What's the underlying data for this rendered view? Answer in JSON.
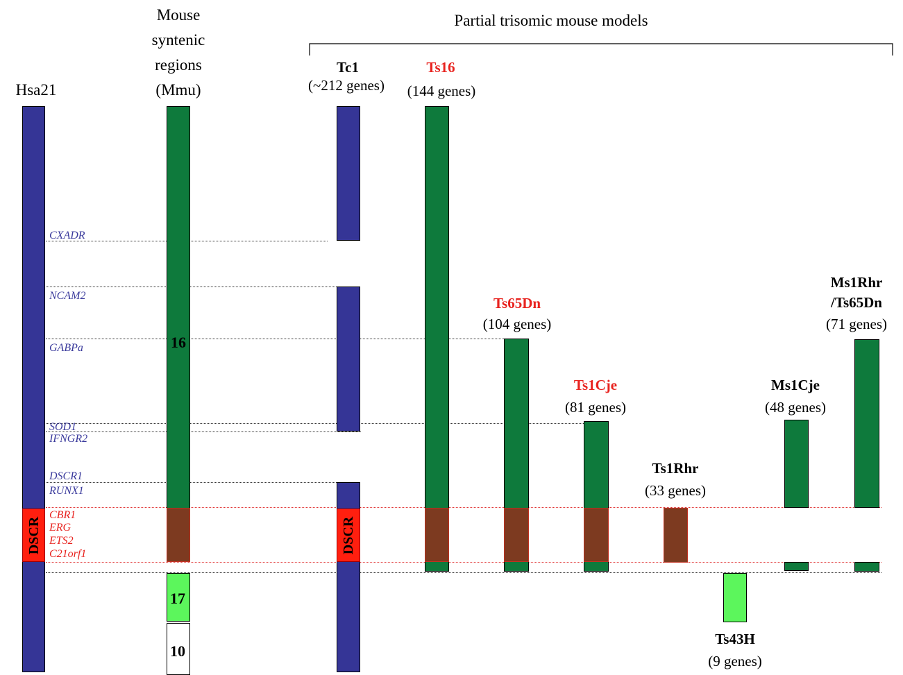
{
  "header": {
    "hsa": "Hsa21",
    "mouse": [
      "Mouse",
      "syntenic",
      "regions",
      "(Mmu)"
    ],
    "partial": "Partial trisomic mouse models"
  },
  "genes": {
    "cxadr": "CXADR",
    "ncam2": "NCAM2",
    "gabpa": "GABPa",
    "sod1": "SOD1",
    "ifngr2": "IFNGR2",
    "dscr1": "DSCR1",
    "runx1": "RUNX1",
    "cbr1": "CBR1",
    "erg": "ERG",
    "ets2": "ETS2",
    "c21orf1": "C21orf1"
  },
  "chromosomes": {
    "c16": "16",
    "c17": "17",
    "c10": "10"
  },
  "dscr": "DSCR",
  "models": {
    "tc1": {
      "name": "Tc1",
      "genes": "(~212 genes)"
    },
    "ts16": {
      "name": "Ts16",
      "genes": "(144 genes)"
    },
    "ts65dn": {
      "name": "Ts65Dn",
      "genes": "(104 genes)"
    },
    "ts1cje": {
      "name": "Ts1Cje",
      "genes": "(81 genes)"
    },
    "ts1rhr": {
      "name": "Ts1Rhr",
      "genes": "(33 genes)"
    },
    "ts43h": {
      "name": "Ts43H",
      "genes": "(9 genes)"
    },
    "ms1cje": {
      "name": "Ms1Cje",
      "genes": "(48 genes)"
    },
    "ms1rhr": {
      "name1": "Ms1Rhr",
      "name2": "/Ts65Dn",
      "genes": "(71 genes)"
    }
  },
  "colors": {
    "human": "#353596",
    "mouse16": "#0e7a3c",
    "mouse17": "#5cf65c",
    "dscr_region": "#7d3a20",
    "dscr_box": "#ff1f0f",
    "highlight_model": "#e8231f"
  }
}
